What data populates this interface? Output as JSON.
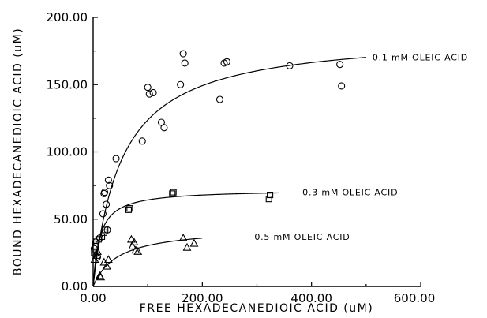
{
  "chart_data": {
    "type": "scatter",
    "title": "",
    "xlabel": "FREE HEXADECANEDIOIC ACID (uM)",
    "ylabel": "BOUND HEXADECANEDIOIC ACID (uM)",
    "xlim": [
      0,
      600
    ],
    "ylim": [
      0,
      200
    ],
    "xticks": [
      "0.00",
      "200.00",
      "400.00",
      "600.00"
    ],
    "yticks": [
      "0.00",
      "50.00",
      "100.00",
      "150.00",
      "200.00"
    ],
    "grid": false,
    "series": [
      {
        "name": "0.1 mM OLEIC ACID",
        "marker": "circle",
        "fit": {
          "bmax": 188,
          "kd": 52,
          "x_end": 500
        },
        "points": [
          {
            "x": 2,
            "y": 28
          },
          {
            "x": 5,
            "y": 33
          },
          {
            "x": 8,
            "y": 22
          },
          {
            "x": 12,
            "y": 36
          },
          {
            "x": 18,
            "y": 54
          },
          {
            "x": 20,
            "y": 69
          },
          {
            "x": 21,
            "y": 70
          },
          {
            "x": 24,
            "y": 61
          },
          {
            "x": 26,
            "y": 42
          },
          {
            "x": 28,
            "y": 79
          },
          {
            "x": 30,
            "y": 75
          },
          {
            "x": 42,
            "y": 95
          },
          {
            "x": 90,
            "y": 108
          },
          {
            "x": 100,
            "y": 148
          },
          {
            "x": 103,
            "y": 143
          },
          {
            "x": 110,
            "y": 144
          },
          {
            "x": 125,
            "y": 122
          },
          {
            "x": 130,
            "y": 118
          },
          {
            "x": 160,
            "y": 150
          },
          {
            "x": 165,
            "y": 173
          },
          {
            "x": 168,
            "y": 166
          },
          {
            "x": 232,
            "y": 139
          },
          {
            "x": 240,
            "y": 166
          },
          {
            "x": 245,
            "y": 167
          },
          {
            "x": 360,
            "y": 164
          },
          {
            "x": 452,
            "y": 165
          },
          {
            "x": 455,
            "y": 149
          }
        ]
      },
      {
        "name": "0.3 mM OLEIC ACID",
        "marker": "square",
        "fit": {
          "bmax": 72,
          "kd": 12,
          "x_end": 340
        },
        "points": [
          {
            "x": 2,
            "y": 25
          },
          {
            "x": 4,
            "y": 30
          },
          {
            "x": 6,
            "y": 34
          },
          {
            "x": 10,
            "y": 35
          },
          {
            "x": 16,
            "y": 37
          },
          {
            "x": 20,
            "y": 40
          },
          {
            "x": 22,
            "y": 42
          },
          {
            "x": 65,
            "y": 57
          },
          {
            "x": 67,
            "y": 58
          },
          {
            "x": 145,
            "y": 69
          },
          {
            "x": 147,
            "y": 70
          },
          {
            "x": 322,
            "y": 65
          },
          {
            "x": 324,
            "y": 68
          }
        ]
      },
      {
        "name": "0.5 mM OLEIC ACID",
        "marker": "triangle",
        "fit": {
          "bmax": 44,
          "kd": 45,
          "x_end": 200
        },
        "points": [
          {
            "x": 3,
            "y": 20
          },
          {
            "x": 6,
            "y": 23
          },
          {
            "x": 8,
            "y": 26
          },
          {
            "x": 12,
            "y": 8
          },
          {
            "x": 14,
            "y": 7
          },
          {
            "x": 20,
            "y": 18
          },
          {
            "x": 25,
            "y": 15
          },
          {
            "x": 28,
            "y": 20
          },
          {
            "x": 70,
            "y": 35
          },
          {
            "x": 72,
            "y": 30
          },
          {
            "x": 75,
            "y": 33
          },
          {
            "x": 78,
            "y": 27
          },
          {
            "x": 82,
            "y": 26
          },
          {
            "x": 165,
            "y": 36
          },
          {
            "x": 172,
            "y": 29
          },
          {
            "x": 185,
            "y": 32
          }
        ]
      }
    ]
  }
}
